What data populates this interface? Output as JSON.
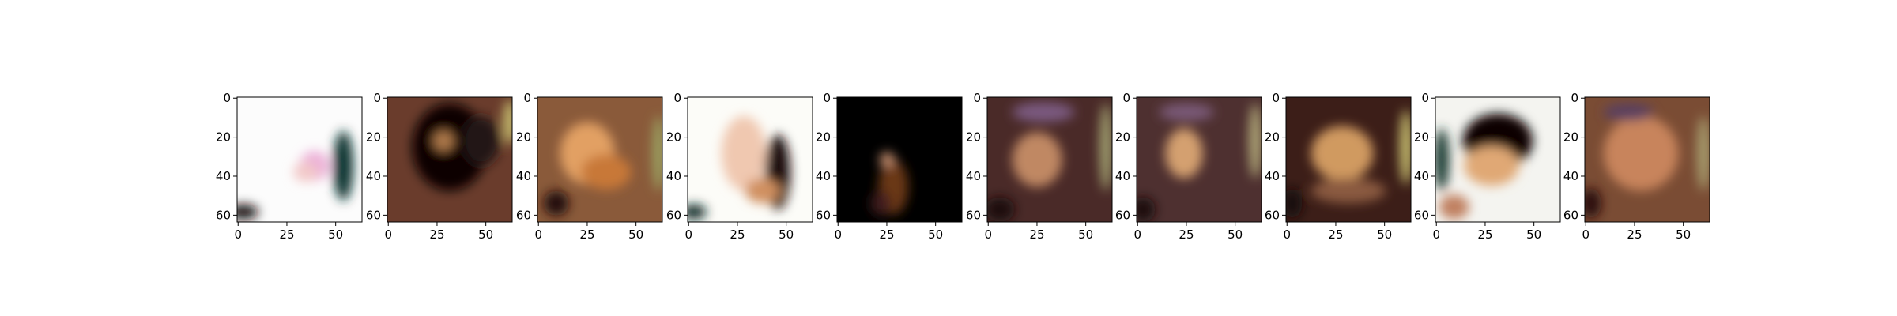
{
  "chart_data": [
    {
      "type": "heatmap",
      "x_ticks": [
        "0",
        "25",
        "50"
      ],
      "y_ticks": [
        "0",
        "20",
        "40",
        "60"
      ],
      "xlim": [
        0,
        63
      ],
      "ylim": [
        63,
        0
      ],
      "grid": false,
      "colors": {
        "base": "#fcfcfc",
        "blobs": [
          "#0a3530",
          "#180a0a",
          "#ecb0d8",
          "#f2c8c8"
        ]
      }
    },
    {
      "type": "heatmap",
      "x_ticks": [
        "0",
        "25",
        "50"
      ],
      "y_ticks": [
        "0",
        "20",
        "40",
        "60"
      ],
      "xlim": [
        0,
        63
      ],
      "ylim": [
        63,
        0
      ],
      "grid": false,
      "colors": {
        "base": "#6a3c2c",
        "blobs": [
          "#100606",
          "#201818",
          "#b07a4c",
          "#c8c070"
        ]
      }
    },
    {
      "type": "heatmap",
      "x_ticks": [
        "0",
        "25",
        "50"
      ],
      "y_ticks": [
        "0",
        "20",
        "40",
        "60"
      ],
      "xlim": [
        0,
        63
      ],
      "ylim": [
        63,
        0
      ],
      "grid": false,
      "colors": {
        "base": "#8a5a3a",
        "blobs": [
          "#e2a064",
          "#c87838",
          "#9aa060",
          "#201010"
        ]
      }
    },
    {
      "type": "heatmap",
      "x_ticks": [
        "0",
        "25",
        "50"
      ],
      "y_ticks": [
        "0",
        "20",
        "40",
        "60"
      ],
      "xlim": [
        0,
        63
      ],
      "ylim": [
        63,
        0
      ],
      "grid": false,
      "colors": {
        "base": "#fcfcf8",
        "blobs": [
          "#f0c8b0",
          "#1a0a0a",
          "#d09060",
          "#0a2a28"
        ]
      }
    },
    {
      "type": "heatmap",
      "x_ticks": [
        "0",
        "25",
        "50"
      ],
      "y_ticks": [
        "0",
        "20",
        "40",
        "60"
      ],
      "xlim": [
        0,
        63
      ],
      "ylim": [
        63,
        0
      ],
      "grid": false,
      "colors": {
        "base": "#000000",
        "blobs": [
          "#6a3818",
          "#c89070",
          "#401c1c"
        ]
      }
    },
    {
      "type": "heatmap",
      "x_ticks": [
        "0",
        "25",
        "50"
      ],
      "y_ticks": [
        "0",
        "20",
        "40",
        "60"
      ],
      "xlim": [
        0,
        63
      ],
      "ylim": [
        63,
        0
      ],
      "grid": false,
      "colors": {
        "base": "#4a2a28",
        "blobs": [
          "#c08864",
          "#1a0808",
          "#a0a070",
          "#7a5a80"
        ]
      }
    },
    {
      "type": "heatmap",
      "x_ticks": [
        "0",
        "25",
        "50"
      ],
      "y_ticks": [
        "0",
        "20",
        "40",
        "60"
      ],
      "xlim": [
        0,
        63
      ],
      "ylim": [
        63,
        0
      ],
      "grid": false,
      "colors": {
        "base": "#4e3030",
        "blobs": [
          "#d4a070",
          "#1a0808",
          "#b0a878",
          "#7a5a78"
        ]
      }
    },
    {
      "type": "heatmap",
      "x_ticks": [
        "0",
        "25",
        "50"
      ],
      "y_ticks": [
        "0",
        "20",
        "40",
        "60"
      ],
      "xlim": [
        0,
        63
      ],
      "ylim": [
        63,
        0
      ],
      "grid": false,
      "colors": {
        "base": "#3c1e18",
        "blobs": [
          "#d09a60",
          "#180808",
          "#c8c070",
          "#8a5a40"
        ]
      }
    },
    {
      "type": "heatmap",
      "x_ticks": [
        "0",
        "25",
        "50"
      ],
      "y_ticks": [
        "0",
        "20",
        "40",
        "60"
      ],
      "xlim": [
        0,
        63
      ],
      "ylim": [
        63,
        0
      ],
      "grid": false,
      "colors": {
        "base": "#f4f4f0",
        "blobs": [
          "#0a0404",
          "#e0a874",
          "#1a3a30",
          "#c08060"
        ]
      }
    },
    {
      "type": "heatmap",
      "x_ticks": [
        "0",
        "25",
        "50"
      ],
      "y_ticks": [
        "0",
        "20",
        "40",
        "60"
      ],
      "xlim": [
        0,
        63
      ],
      "ylim": [
        63,
        0
      ],
      "grid": false,
      "colors": {
        "base": "#7a4c34",
        "blobs": [
          "#c8845c",
          "#2a1010",
          "#a8a070",
          "#5a4060"
        ]
      }
    }
  ]
}
